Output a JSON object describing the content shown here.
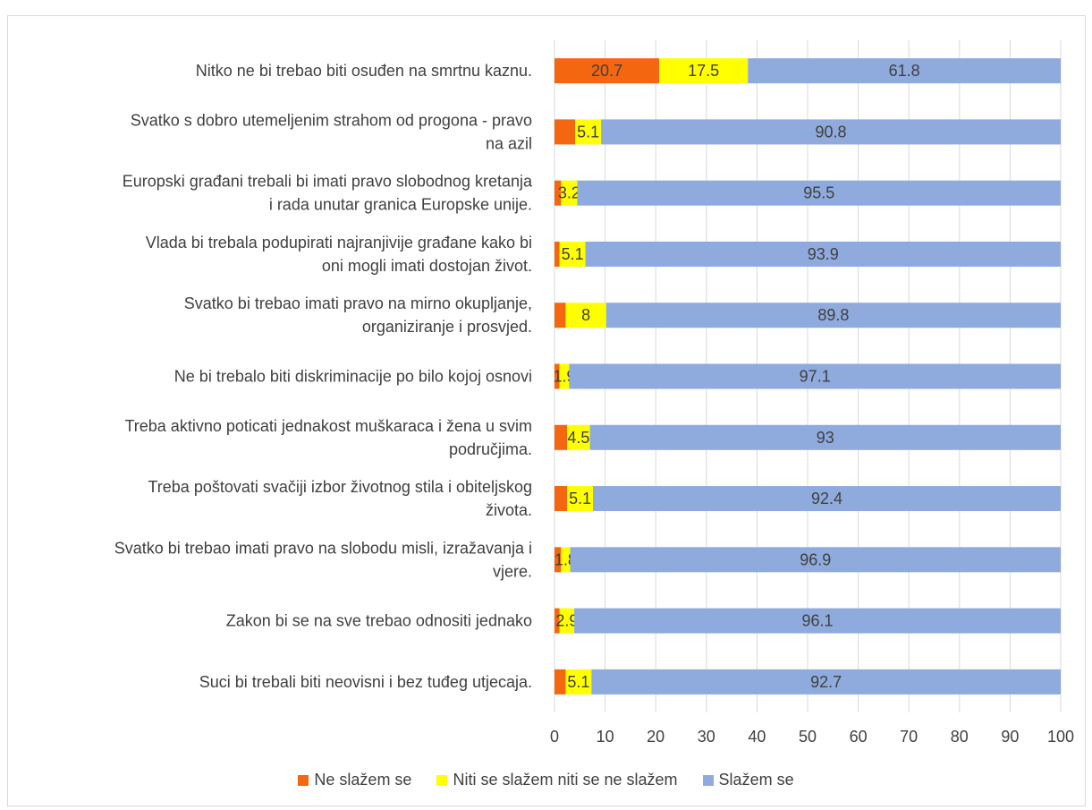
{
  "chart_data": {
    "type": "bar",
    "orientation": "horizontal",
    "stacked": true,
    "categories": [
      [
        "Nitko ne bi trebao biti osuđen na smrtnu kaznu."
      ],
      [
        "Svatko s dobro utemeljenim strahom od progona - pravo",
        "na azil"
      ],
      [
        "Europski građani trebali bi imati pravo slobodnog kretanja",
        "i rada unutar granica Europske unije."
      ],
      [
        "Vlada bi trebala podupirati najranjivije građane kako bi",
        "oni mogli imati dostojan život."
      ],
      [
        "Svatko bi trebao imati pravo na mirno okupljanje,",
        "organiziranje i prosvjed."
      ],
      [
        "Ne bi trebalo biti diskriminacije po bilo kojoj osnovi"
      ],
      [
        "Treba aktivno poticati jednakost muškaraca i žena u svim",
        "područjima."
      ],
      [
        "Treba poštovati svačiji izbor životnog stila i obiteljskog",
        "života."
      ],
      [
        "Svatko bi trebao imati pravo na slobodu misli, izražavanja i",
        "vjere."
      ],
      [
        "Zakon bi se na sve trebao odnositi jednako"
      ],
      [
        "Suci bi trebali biti neovisni i bez tuđeg utjecaja."
      ]
    ],
    "series": [
      {
        "name": "Ne slažem se",
        "color": "#F4660F",
        "values": [
          20.7,
          4.1,
          1.3,
          1.0,
          2.2,
          1.0,
          2.5,
          2.5,
          1.3,
          1.0,
          2.2
        ],
        "labels": [
          "20.7",
          "",
          "",
          "",
          "",
          "",
          "",
          "",
          "",
          "",
          ""
        ]
      },
      {
        "name": "Niti se slažem niti se ne slažem",
        "color": "#FFFF00",
        "values": [
          17.5,
          5.1,
          3.2,
          5.1,
          8,
          1.9,
          4.5,
          5.1,
          1.8,
          2.9,
          5.1
        ],
        "labels": [
          "17.5",
          "5.1",
          "3.2",
          "5.1",
          "8",
          "1.9",
          "4.5",
          "5.1",
          "1.8",
          "2.9",
          "5.1"
        ]
      },
      {
        "name": "Slažem se",
        "color": "#8FAADC",
        "values": [
          61.8,
          90.8,
          95.5,
          93.9,
          89.8,
          97.1,
          93,
          92.4,
          96.9,
          96.1,
          92.7
        ],
        "labels": [
          "61.8",
          "90.8",
          "95.5",
          "93.9",
          "89.8",
          "97.1",
          "93",
          "92.4",
          "96.9",
          "96.1",
          "92.7"
        ]
      }
    ],
    "xlim": [
      0,
      100
    ],
    "xticks": [
      "0",
      "10",
      "20",
      "30",
      "40",
      "50",
      "60",
      "70",
      "80",
      "90",
      "100"
    ],
    "grid": true,
    "legend_position": "bottom"
  }
}
